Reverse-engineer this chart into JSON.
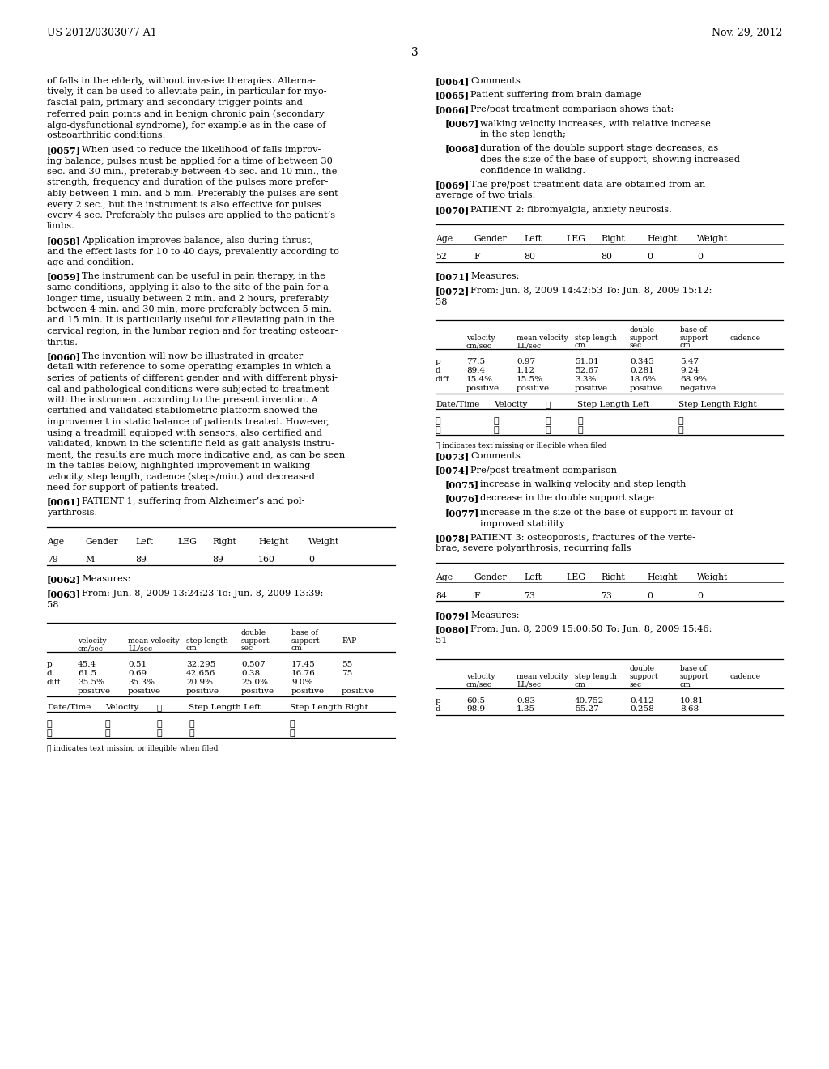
{
  "bg_color": "#ffffff",
  "header_left": "US 2012/0303077 A1",
  "header_right": "Nov. 29, 2012",
  "page_number": "3",
  "left_paragraphs": [
    [
      "of falls in the elderly, without invasive therapies. Alterna-",
      "tively, it can be used to alleviate pain, in particular for myo-",
      "fascial pain, primary and secondary trigger points and",
      "referred pain points and in benign chronic pain (secondary",
      "algo-dysfunctional syndrome), for example as in the case of",
      "osteoarthritic conditions."
    ],
    [
      "[0057]",
      "When used to reduce the likelihood of falls improv-",
      "ing balance, pulses must be applied for a time of between 30",
      "sec. and 30 min., preferably between 45 sec. and 10 min., the",
      "strength, frequency and duration of the pulses more prefer-",
      "ably between 1 min. and 5 min. Preferably the pulses are sent",
      "every 2 sec., but the instrument is also effective for pulses",
      "every 4 sec. Preferably the pulses are applied to the patient’s",
      "limbs."
    ],
    [
      "[0058]",
      "Application improves balance, also during thrust,",
      "and the effect lasts for 10 to 40 days, prevalently according to",
      "age and condition."
    ],
    [
      "[0059]",
      "The instrument can be useful in pain therapy, in the",
      "same conditions, applying it also to the site of the pain for a",
      "longer time, usually between 2 min. and 2 hours, preferably",
      "between 4 min. and 30 min, more preferably between 5 min.",
      "and 15 min. It is particularly useful for alleviating pain in the",
      "cervical region, in the lumbar region and for treating osteoar-",
      "thritis."
    ],
    [
      "[0060]",
      "The invention will now be illustrated in greater",
      "detail with reference to some operating examples in which a",
      "series of patients of different gender and with different physi-",
      "cal and pathological conditions were subjected to treatment",
      "with the instrument according to the present invention. A",
      "certified and validated stabilometric platform showed the",
      "improvement in static balance of patients treated. However,",
      "using a treadmill equipped with sensors, also certified and",
      "validated, known in the scientific field as gait analysis instru-",
      "ment, the results are much more indicative and, as can be seen",
      "in the tables below, highlighted improvement in walking",
      "velocity, step length, cadence (steps/min.) and decreased",
      "need for support of patients treated."
    ],
    [
      "[0061]",
      "PATIENT 1, suffering from Alzheimer’s and pol-",
      "yarthrosis."
    ]
  ],
  "right_paragraphs": [
    [
      "[0064]",
      "Comments"
    ],
    [
      "[0065]",
      "Patient suffering from brain damage"
    ],
    [
      "[0066]",
      "Pre/post treatment comparison shows that:"
    ],
    [
      "[0067]i",
      "walking velocity increases, with relative increase",
      "in the step length;"
    ],
    [
      "[0068]i",
      "duration of the double support stage decreases, as",
      "does the size of the base of support, showing increased",
      "confidence in walking."
    ],
    [
      "[0069]",
      "The pre/post treatment data are obtained from an",
      "average of two trials."
    ],
    [
      "[0070]",
      "PATIENT 2: fibromyalgia, anxiety neurosis."
    ]
  ],
  "right_paragraphs_lower": [
    [
      "[0073]",
      "Comments"
    ],
    [
      "[0074]",
      "Pre/post treatment comparison"
    ],
    [
      "[0075]i",
      "increase in walking velocity and step length"
    ],
    [
      "[0076]i",
      "decrease in the double support stage"
    ],
    [
      "[0077]i",
      "increase in the size of the base of support in favour of",
      "improved stability"
    ],
    [
      "[0078]",
      "PATIENT 3: osteoporosis, fractures of the verte-",
      "brae, severe polyarthrosis, recurring falls"
    ]
  ]
}
